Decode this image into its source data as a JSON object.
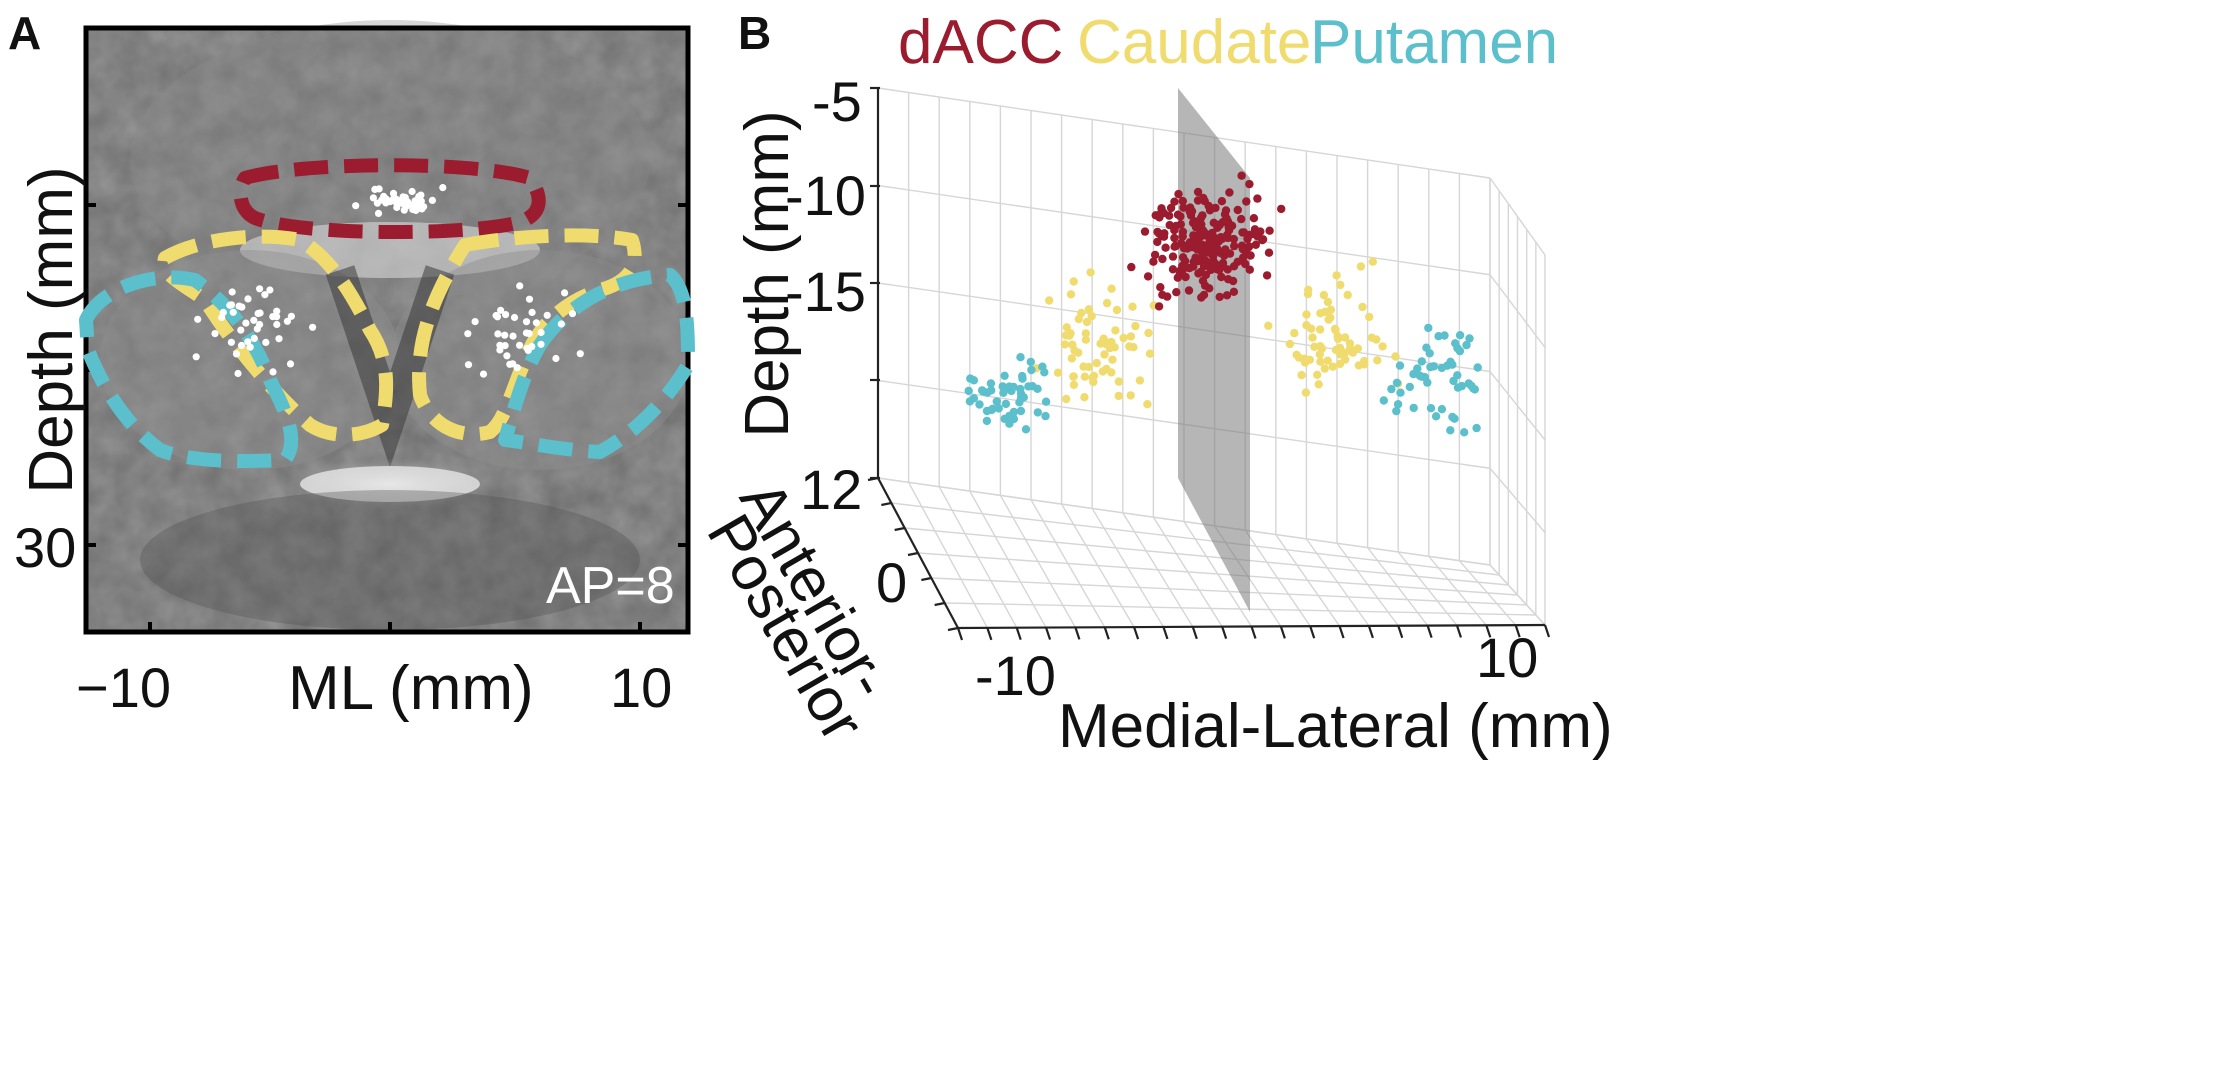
{
  "panel_a": {
    "letter": "A",
    "ylabel": "Depth (mm)",
    "xlabel": "ML (mm)",
    "y_tick": "30",
    "x_ticks": [
      "−10",
      "10"
    ],
    "annotation": "AP=8",
    "region_colors": {
      "dACC": "#9b1c2e",
      "Caudate": "#f0dc6e",
      "Putamen": "#5bbfcc"
    }
  },
  "panel_b": {
    "letter": "B",
    "legend": [
      {
        "name": "dACC",
        "color": "#9b1c2e"
      },
      {
        "name": "Caudate",
        "color": "#f0dc6e"
      },
      {
        "name": "Putamen",
        "color": "#5bbfcc"
      }
    ],
    "zlabel": "Depth (mm)",
    "z_ticks": [
      "-5",
      "-10",
      "-15"
    ],
    "ap_ticks": [
      "12",
      "0"
    ],
    "ap_label_1": "Anterior-",
    "ap_label_2": "Posterior",
    "ml_ticks": [
      "-10",
      "10"
    ],
    "ml_label": "Medial-Lateral (mm)"
  },
  "chart_data": {
    "type": "scatter",
    "title": "",
    "axes": {
      "x": {
        "label": "Medial-Lateral (mm)",
        "ticks": [
          -10,
          10
        ]
      },
      "y": {
        "label": "Anterior-Posterior",
        "ticks": [
          12,
          0
        ]
      },
      "z": {
        "label": "Depth (mm)",
        "ticks": [
          -5,
          -10,
          -15
        ]
      }
    },
    "series": [
      {
        "name": "dACC",
        "color": "#9b1c2e",
        "approx_points": 200,
        "ml_range": [
          -3,
          5
        ],
        "depth_range": [
          -8,
          -18
        ]
      },
      {
        "name": "Caudate",
        "color": "#f0dc6e",
        "approx_points": 140,
        "ml_range": [
          -9,
          8
        ],
        "depth_range": [
          -13,
          -25
        ]
      },
      {
        "name": "Putamen",
        "color": "#5bbfcc",
        "approx_points": 110,
        "ml_range": [
          -13,
          13
        ],
        "depth_range": [
          -17,
          -28
        ]
      }
    ]
  }
}
